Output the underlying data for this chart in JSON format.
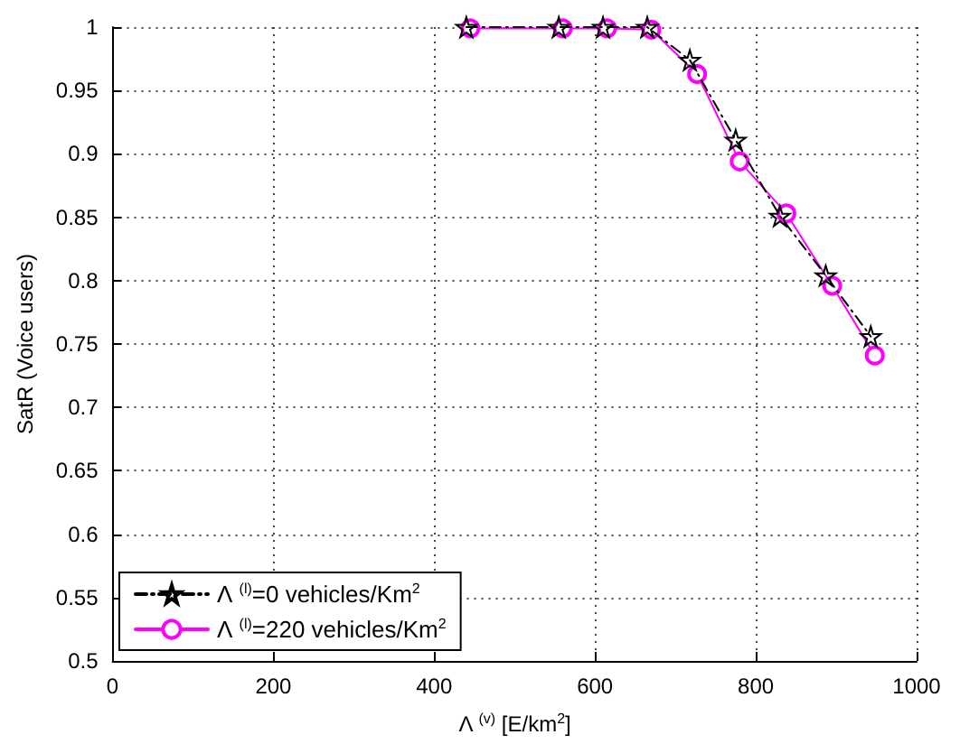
{
  "chart_data": {
    "type": "line",
    "xlabel": "Λ $^{(v)}$ [E/km$^{2}$]",
    "ylabel": "SatR (Voice users)",
    "series": [
      {
        "name": "Λ $^{(l)}$=0 vehicles/Km$^{2}$",
        "color": "#000000",
        "marker": "star",
        "line_style": "dashed",
        "x": [
          440,
          555,
          610,
          665,
          718,
          775,
          830,
          887,
          943
        ],
        "values": [
          1,
          1,
          1,
          1,
          0.974,
          0.911,
          0.851,
          0.804,
          0.756
        ]
      },
      {
        "name": "Λ $^{(l)}$=220 vehicles/Km$^{2}$",
        "color": "#ff00ff",
        "marker": "circle",
        "line_style": "solid",
        "x": [
          445,
          560,
          615,
          670,
          727,
          780,
          838,
          895,
          948
        ],
        "values": [
          0.999,
          0.999,
          0.999,
          0.998,
          0.963,
          0.894,
          0.853,
          0.796,
          0.741
        ]
      }
    ],
    "xlim": [
      0,
      1000
    ],
    "xticks": [
      0,
      200,
      400,
      600,
      800,
      1000
    ],
    "ylim": [
      0.5,
      1
    ],
    "yticks": [
      0.5,
      0.55,
      0.6,
      0.65,
      0.7,
      0.75,
      0.8,
      0.85,
      0.9,
      0.95,
      1
    ],
    "grid": true,
    "legend": "bottom left"
  }
}
